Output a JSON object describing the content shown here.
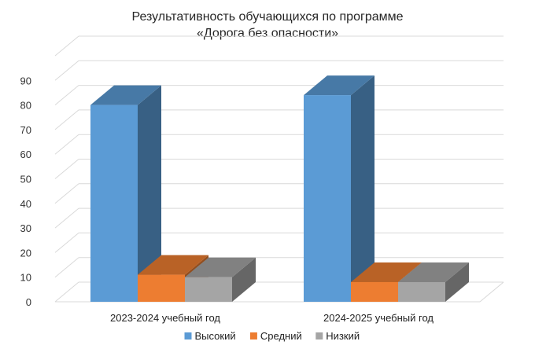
{
  "chart_data": {
    "type": "bar",
    "title_lines": [
      "Результативность обучающихся по программе",
      "«Дорога без опасности»"
    ],
    "categories": [
      "2023-2024 учебный год",
      "2024-2025 учебный год"
    ],
    "series": [
      {
        "name": "Высокий",
        "values": [
          80,
          84
        ],
        "color": "#5B9BD5"
      },
      {
        "name": "Средний",
        "values": [
          11,
          8
        ],
        "color": "#ED7D31"
      },
      {
        "name": "Низкий",
        "values": [
          10,
          8
        ],
        "color": "#A5A5A5"
      }
    ],
    "yticks": [
      0,
      10,
      20,
      30,
      40,
      50,
      60,
      70,
      80,
      90
    ],
    "ylim": [
      0,
      100
    ],
    "grid": true,
    "legend_position": "bottom",
    "three_d": true
  }
}
